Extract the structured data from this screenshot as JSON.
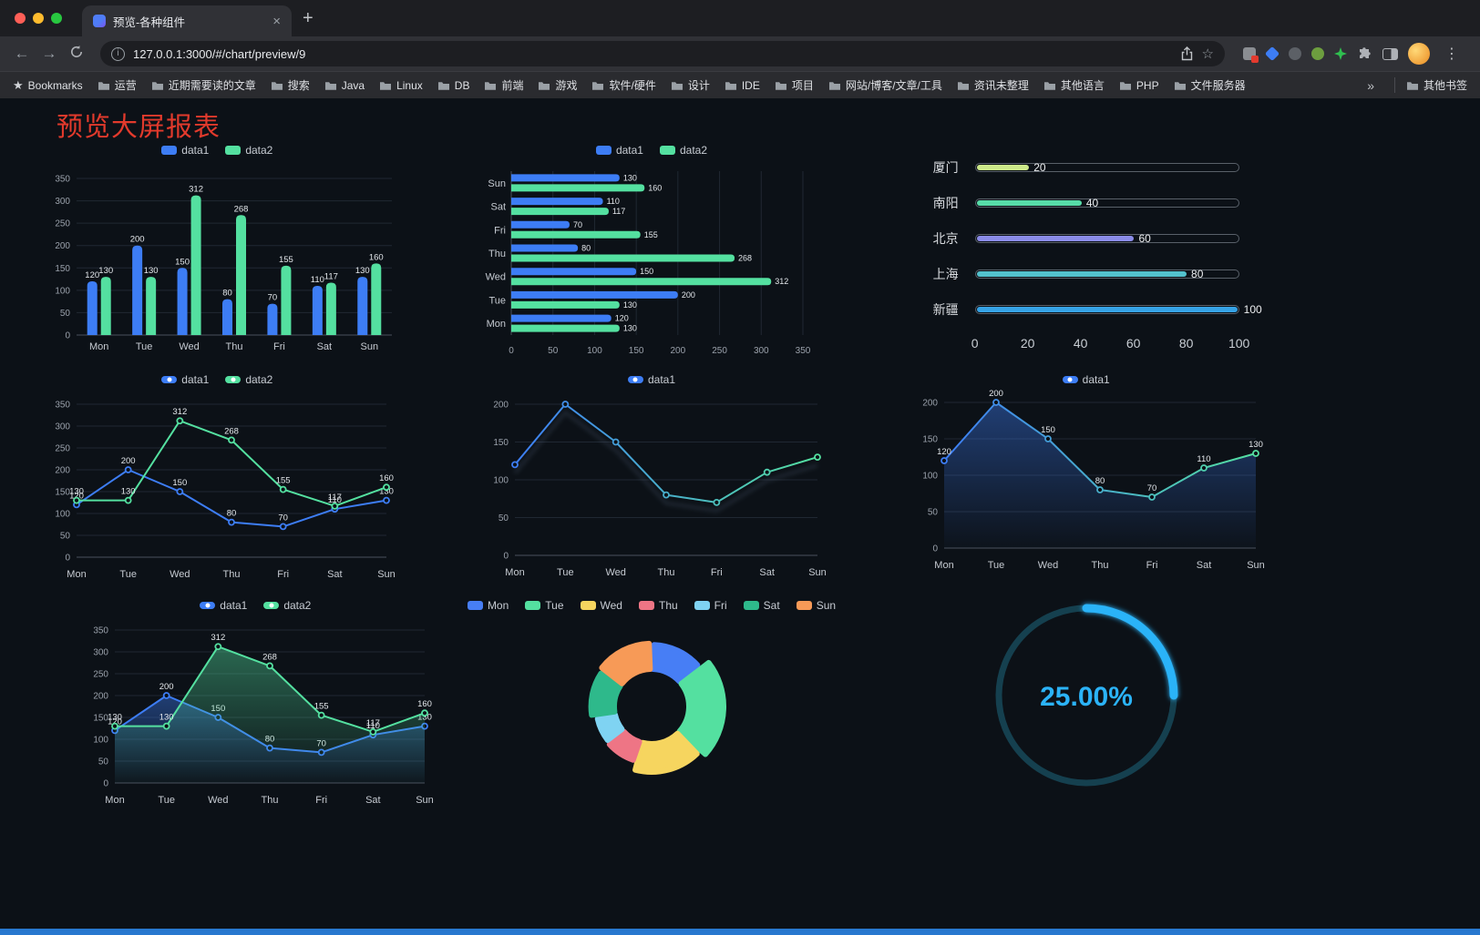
{
  "browser": {
    "tab": {
      "title": "预览-各种组件",
      "close": "×"
    },
    "new_tab": "+",
    "nav": {
      "back": "←",
      "forward": "→",
      "url": "127.0.0.1:3000/#/chart/preview/9",
      "info": "i",
      "bookmark_star": "☆",
      "menu": "⋮"
    },
    "bookmarks_bar": {
      "star": "★",
      "label": "Bookmarks",
      "folders": [
        "运营",
        "近期需要读的文章",
        "搜索",
        "Java",
        "Linux",
        "DB",
        "前端",
        "游戏",
        "软件/硬件",
        "设计",
        "IDE",
        "项目",
        "网站/博客/文章/工具",
        "资讯未整理",
        "其他语言",
        "PHP",
        "文件服务器"
      ],
      "overflow": "»",
      "other": "其他书签"
    }
  },
  "page": {
    "title": "预览大屏报表"
  },
  "colors": {
    "data1": "#3d7df5",
    "data2": "#54e0a0",
    "background": "#0c1117",
    "title": "#e23a2c"
  },
  "chart_data": [
    {
      "id": "bar-grouped",
      "type": "bar",
      "legend": [
        {
          "label": "data1",
          "color": "#3d7df5",
          "marker": "rect"
        },
        {
          "label": "data2",
          "color": "#54e0a0",
          "marker": "rect"
        }
      ],
      "categories": [
        "Mon",
        "Tue",
        "Wed",
        "Thu",
        "Fri",
        "Sat",
        "Sun"
      ],
      "series": [
        {
          "name": "data1",
          "color": "#3d7df5",
          "values": [
            120,
            200,
            150,
            80,
            70,
            110,
            130
          ]
        },
        {
          "name": "data2",
          "color": "#54e0a0",
          "values": [
            130,
            130,
            312,
            268,
            155,
            117,
            160
          ]
        }
      ],
      "ylim": [
        0,
        350
      ],
      "yticks": [
        0,
        50,
        100,
        150,
        200,
        250,
        300,
        350
      ]
    },
    {
      "id": "bar-horizontal",
      "type": "hbar",
      "legend": [
        {
          "label": "data1",
          "color": "#3d7df5",
          "marker": "rect"
        },
        {
          "label": "data2",
          "color": "#54e0a0",
          "marker": "rect"
        }
      ],
      "categories": [
        "Mon",
        "Tue",
        "Wed",
        "Thu",
        "Fri",
        "Sat",
        "Sun"
      ],
      "series": [
        {
          "name": "data1",
          "color": "#3d7df5",
          "values": [
            120,
            200,
            150,
            80,
            70,
            110,
            130
          ]
        },
        {
          "name": "data2",
          "color": "#54e0a0",
          "values": [
            130,
            130,
            312,
            268,
            155,
            117,
            160
          ]
        }
      ],
      "xlim": [
        0,
        350
      ],
      "xticks": [
        0,
        50,
        100,
        150,
        200,
        250,
        300,
        350
      ]
    },
    {
      "id": "progress-city",
      "type": "progress",
      "max": 100,
      "xticks": [
        0,
        20,
        40,
        60,
        80,
        100
      ],
      "items": [
        {
          "label": "厦门",
          "value": 20,
          "color": "#cde98a"
        },
        {
          "label": "南阳",
          "value": 40,
          "color": "#57dca8"
        },
        {
          "label": "北京",
          "value": 60,
          "color": "#8b8ce8"
        },
        {
          "label": "上海",
          "value": 80,
          "color": "#53c1cd"
        },
        {
          "label": "新疆",
          "value": 100,
          "color": "#36a3e6"
        }
      ]
    },
    {
      "id": "line-two",
      "type": "line",
      "legend": [
        {
          "label": "data1",
          "color": "#3d7df5",
          "marker": "line"
        },
        {
          "label": "data2",
          "color": "#54e0a0",
          "marker": "line"
        }
      ],
      "categories": [
        "Mon",
        "Tue",
        "Wed",
        "Thu",
        "Fri",
        "Sat",
        "Sun"
      ],
      "series": [
        {
          "name": "data1",
          "color": "#3d7df5",
          "values": [
            120,
            200,
            150,
            80,
            70,
            110,
            130
          ]
        },
        {
          "name": "data2",
          "color": "#54e0a0",
          "values": [
            130,
            130,
            312,
            268,
            155,
            117,
            160
          ]
        }
      ],
      "ylim": [
        0,
        350
      ],
      "yticks": [
        0,
        50,
        100,
        150,
        200,
        250,
        300,
        350
      ],
      "show_labels": true
    },
    {
      "id": "line-gradient",
      "type": "line",
      "legend": [
        {
          "label": "data1",
          "color": "#3d7df5",
          "marker": "line"
        }
      ],
      "categories": [
        "Mon",
        "Tue",
        "Wed",
        "Thu",
        "Fri",
        "Sat",
        "Sun"
      ],
      "series": [
        {
          "name": "data1",
          "gradient": [
            "#3d7df5",
            "#54e0a0"
          ],
          "values": [
            120,
            200,
            150,
            80,
            70,
            110,
            130
          ],
          "shadow": true
        }
      ],
      "ylim": [
        0,
        200
      ],
      "yticks": [
        0,
        50,
        100,
        150,
        200
      ],
      "show_labels": false
    },
    {
      "id": "line-area",
      "type": "line",
      "legend": [
        {
          "label": "data1",
          "color": "#3d7df5",
          "marker": "line"
        }
      ],
      "categories": [
        "Mon",
        "Tue",
        "Wed",
        "Thu",
        "Fri",
        "Sat",
        "Sun"
      ],
      "series": [
        {
          "name": "data1",
          "color": "#3d7df5",
          "gradient": [
            "#3d7df5",
            "#54e0a0"
          ],
          "values": [
            120,
            200,
            150,
            80,
            70,
            110,
            130
          ],
          "area": true
        }
      ],
      "ylim": [
        0,
        200
      ],
      "yticks": [
        0,
        50,
        100,
        150,
        200
      ],
      "show_labels": true
    },
    {
      "id": "line-area-two",
      "type": "line",
      "legend": [
        {
          "label": "data1",
          "color": "#3d7df5",
          "marker": "line"
        },
        {
          "label": "data2",
          "color": "#54e0a0",
          "marker": "line"
        }
      ],
      "categories": [
        "Mon",
        "Tue",
        "Wed",
        "Thu",
        "Fri",
        "Sat",
        "Sun"
      ],
      "series": [
        {
          "name": "data1",
          "color": "#3d7df5",
          "values": [
            120,
            200,
            150,
            80,
            70,
            110,
            130
          ],
          "area": true
        },
        {
          "name": "data2",
          "color": "#54e0a0",
          "values": [
            130,
            130,
            312,
            268,
            155,
            117,
            160
          ],
          "area": true
        }
      ],
      "ylim": [
        0,
        350
      ],
      "yticks": [
        0,
        50,
        100,
        150,
        200,
        250,
        300,
        350
      ],
      "show_labels": true
    },
    {
      "id": "pie-week",
      "type": "pie",
      "items": [
        {
          "label": "Mon",
          "value": 120,
          "color": "#477ef5"
        },
        {
          "label": "Tue",
          "value": 200,
          "color": "#54e0a0"
        },
        {
          "label": "Wed",
          "value": 150,
          "color": "#f6d55f"
        },
        {
          "label": "Thu",
          "value": 80,
          "color": "#ee7585"
        },
        {
          "label": "Fri",
          "value": 70,
          "color": "#7fd3f2"
        },
        {
          "label": "Sat",
          "value": 110,
          "color": "#2eb98b"
        },
        {
          "label": "Sun",
          "value": 130,
          "color": "#f79a57"
        }
      ]
    },
    {
      "id": "gauge-percent",
      "type": "gauge",
      "value": 25,
      "label": "25.00%",
      "color": "#2bb3f8",
      "track_color": "#15404f"
    }
  ]
}
